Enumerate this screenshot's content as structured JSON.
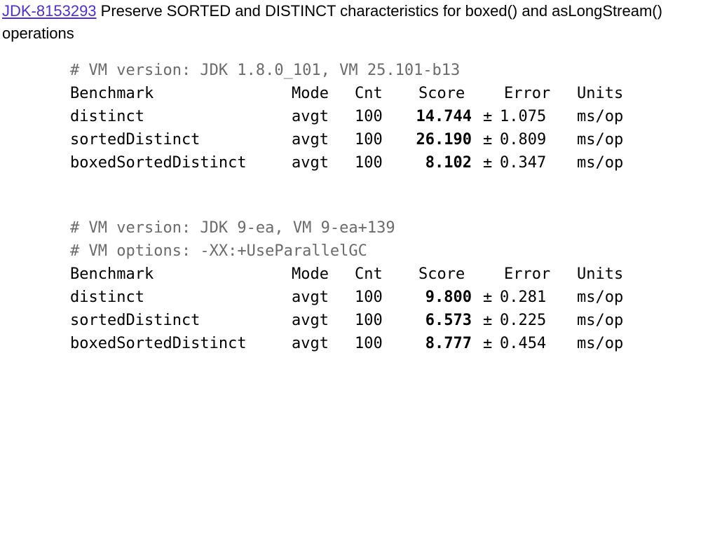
{
  "header": {
    "link_text": "JDK-8153293",
    "title_rest": " Preserve SORTED and DISTINCT characteristics for boxed() and asLongStream()",
    "title_line2": "operations"
  },
  "blocks": [
    {
      "comments": [
        "# VM version: JDK 1.8.0_101, VM 25.101-b13"
      ],
      "columns": {
        "benchmark": "Benchmark",
        "mode": "Mode",
        "cnt": "Cnt",
        "score": "Score",
        "error": "Error",
        "units": "Units"
      },
      "rows": [
        {
          "benchmark": "distinct",
          "mode": "avgt",
          "cnt": "100",
          "score": "14.744",
          "pm": "±",
          "error": "1.075",
          "units": "ms/op"
        },
        {
          "benchmark": "sortedDistinct",
          "mode": "avgt",
          "cnt": "100",
          "score": "26.190",
          "pm": "±",
          "error": "0.809",
          "units": "ms/op"
        },
        {
          "benchmark": "boxedSortedDistinct",
          "mode": "avgt",
          "cnt": "100",
          "score": "8.102",
          "pm": "±",
          "error": "0.347",
          "units": "ms/op"
        }
      ]
    },
    {
      "comments": [
        "# VM version: JDK 9-ea, VM 9-ea+139",
        "# VM options: -XX:+UseParallelGC"
      ],
      "columns": {
        "benchmark": "Benchmark",
        "mode": "Mode",
        "cnt": "Cnt",
        "score": "Score",
        "error": "Error",
        "units": "Units"
      },
      "rows": [
        {
          "benchmark": "distinct",
          "mode": "avgt",
          "cnt": "100",
          "score": "9.800",
          "pm": "±",
          "error": "0.281",
          "units": "ms/op"
        },
        {
          "benchmark": "sortedDistinct",
          "mode": "avgt",
          "cnt": "100",
          "score": "6.573",
          "pm": "±",
          "error": "0.225",
          "units": "ms/op"
        },
        {
          "benchmark": "boxedSortedDistinct",
          "mode": "avgt",
          "cnt": "100",
          "score": "8.777",
          "pm": "±",
          "error": "0.454",
          "units": "ms/op"
        }
      ]
    }
  ]
}
